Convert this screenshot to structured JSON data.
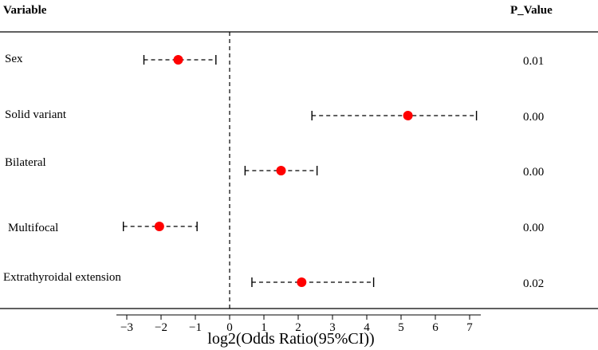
{
  "chart_data": {
    "type": "forest",
    "header_variable": "Variable",
    "header_pvalue": "P_Value",
    "xlabel": "log2(Odds Ratio(95%CI))",
    "xlim": [
      -3.2,
      7.25
    ],
    "xticks": [
      "−3",
      "−2",
      "−1",
      "0",
      "1",
      "2",
      "3",
      "4",
      "5",
      "6",
      "7"
    ],
    "xtick_values": [
      -3,
      -2,
      -1,
      0,
      1,
      2,
      3,
      4,
      5,
      6,
      7
    ],
    "reference_line": 0,
    "point_color": "#ff0000",
    "rows": [
      {
        "variable": "Sex",
        "estimate": -1.5,
        "lower": -2.5,
        "upper": -0.4,
        "p_value": "0.01"
      },
      {
        "variable": "Solid variant",
        "estimate": 5.2,
        "lower": 2.4,
        "upper": 7.2,
        "p_value": "0.00"
      },
      {
        "variable": "Bilateral",
        "estimate": 1.5,
        "lower": 0.45,
        "upper": 2.55,
        "p_value": "0.00"
      },
      {
        "variable": "Multifocal",
        "estimate": -2.05,
        "lower": -3.1,
        "upper": -0.95,
        "p_value": "0.00"
      },
      {
        "variable": "Extrathyroidal extension",
        "estimate": 2.1,
        "lower": 0.65,
        "upper": 4.2,
        "p_value": "0.02"
      }
    ]
  }
}
